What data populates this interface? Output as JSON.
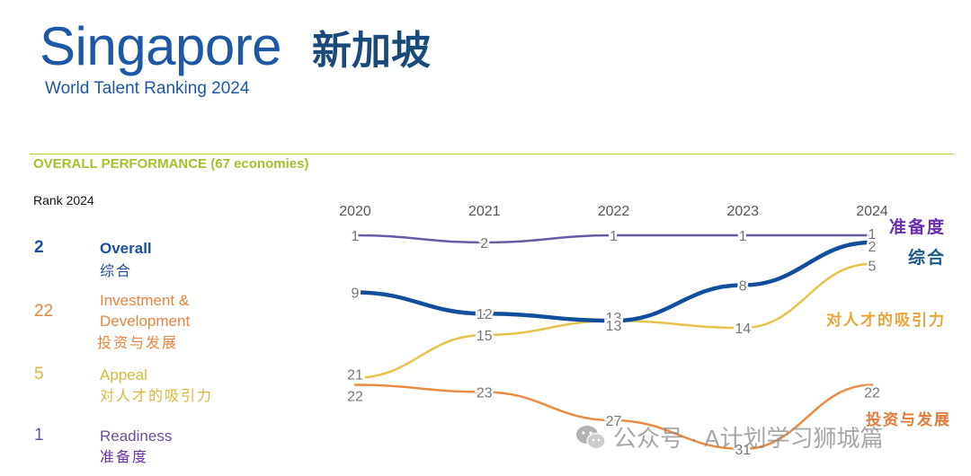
{
  "header": {
    "title_en": "Singapore",
    "title_cn": "新加坡",
    "subtitle": "World Talent Ranking 2024",
    "section_title": "OVERALL PERFORMANCE  (67 economies)"
  },
  "rank_panel": {
    "title": "Rank 2024",
    "items": [
      {
        "rank": "2",
        "label": "Overall",
        "label_cn": "综合",
        "color": "#1a4f9c"
      },
      {
        "rank": "22",
        "label": "Investment & Development",
        "label_cn": "投资与发展",
        "color": "#e8843f"
      },
      {
        "rank": "5",
        "label": "Appeal",
        "label_cn": "对人才的吸引力",
        "color": "#d7b83a"
      },
      {
        "rank": "1",
        "label": "Readiness",
        "label_cn": "准备度",
        "color": "#6a4f9c"
      }
    ]
  },
  "chart_data": {
    "type": "line",
    "x": [
      "2020",
      "2021",
      "2022",
      "2023",
      "2024"
    ],
    "y_inverted": true,
    "series": [
      {
        "key": "readiness",
        "values": [
          1,
          2,
          1,
          1,
          1
        ],
        "color": "#6a5aa5",
        "end_label": "准备度",
        "end_label_color": "#6a2fb0"
      },
      {
        "key": "overall",
        "values": [
          9,
          12,
          13,
          8,
          2
        ],
        "color": "#124e9b",
        "end_label": "综合",
        "end_label_color": "#1a5a8a"
      },
      {
        "key": "appeal",
        "values": [
          21,
          15,
          13,
          14,
          5
        ],
        "color": "#e6c34a",
        "end_label": "对人才的吸引力",
        "end_label_color": "#e8a435"
      },
      {
        "key": "investment",
        "values": [
          22,
          23,
          27,
          31,
          22
        ],
        "color": "#ea8a45",
        "end_label": "投资与发展",
        "end_label_color": "#e07b39"
      }
    ]
  },
  "watermark": {
    "text": "公众号 · A计划学习狮城篇",
    "icon": "wechat-icon"
  }
}
